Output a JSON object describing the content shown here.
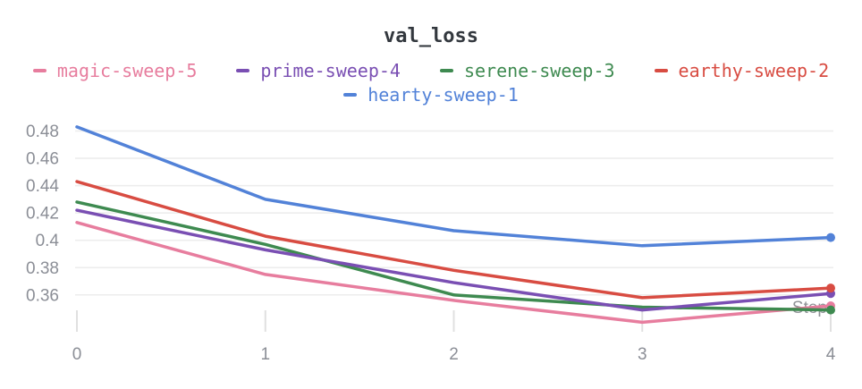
{
  "title": "val_loss",
  "legend": {
    "rows": [
      [
        "magic-sweep-5",
        "prime-sweep-4",
        "serene-sweep-3",
        "earthy-sweep-2"
      ],
      [
        "hearty-sweep-1"
      ]
    ]
  },
  "colors": {
    "magic-sweep-5": "#e77d9e",
    "prime-sweep-4": "#7a4fb3",
    "serene-sweep-3": "#3e8a50",
    "earthy-sweep-2": "#d84c42",
    "hearty-sweep-1": "#5282d8",
    "gridline": "#ececec",
    "tick_mark": "#e0e0e0",
    "axis_text": "#8b8e96",
    "title_text": "#33383e"
  },
  "chart_data": {
    "type": "line",
    "title": "val_loss",
    "xlabel": "Step",
    "ylabel": "",
    "x": [
      0,
      1,
      2,
      3,
      4
    ],
    "x_tick_labels": [
      "0",
      "1",
      "2",
      "3",
      "4"
    ],
    "y_ticks": [
      0.48,
      0.46,
      0.44,
      0.42,
      0.4,
      0.38,
      0.36
    ],
    "y_tick_labels": [
      "0.48",
      "0.46",
      "0.44",
      "0.42",
      "0.4",
      "0.38",
      "0.36"
    ],
    "ylim": [
      0.335,
      0.487
    ],
    "grid": true,
    "legend_position": "top",
    "end_markers": true,
    "series": [
      {
        "name": "hearty-sweep-1",
        "color": "#5282d8",
        "values": [
          0.483,
          0.43,
          0.407,
          0.396,
          0.402
        ]
      },
      {
        "name": "magic-sweep-5",
        "color": "#e77d9e",
        "values": [
          0.413,
          0.375,
          0.356,
          0.34,
          0.352
        ]
      },
      {
        "name": "serene-sweep-3",
        "color": "#3e8a50",
        "values": [
          0.428,
          0.397,
          0.36,
          0.351,
          0.349
        ]
      },
      {
        "name": "prime-sweep-4",
        "color": "#7a4fb3",
        "values": [
          0.422,
          0.393,
          0.369,
          0.349,
          0.361
        ]
      },
      {
        "name": "earthy-sweep-2",
        "color": "#d84c42",
        "values": [
          0.443,
          0.403,
          0.378,
          0.358,
          0.365
        ]
      }
    ]
  }
}
